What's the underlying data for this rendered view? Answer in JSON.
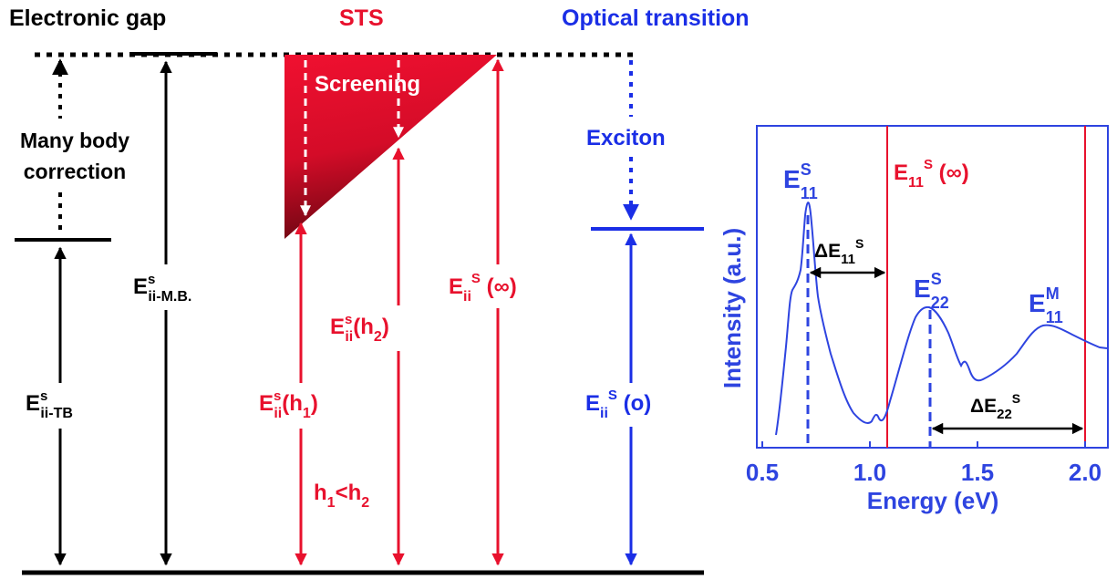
{
  "headers": {
    "electronic_gap": "Electronic gap",
    "sts": "STS",
    "optical_transition": "Optical transition"
  },
  "labels": {
    "many_body_line1": "Many body",
    "many_body_line2": "correction",
    "screening": "Screening",
    "exciton": "Exciton"
  },
  "energies": {
    "tb": {
      "base": "E",
      "sup": "s",
      "sub": "ii-TB"
    },
    "mb": {
      "base": "E",
      "sup": "s",
      "sub": "ii-M.B."
    },
    "h1": {
      "base": "E",
      "sup": "s",
      "sub": "ii",
      "tail": "(h",
      "tail_sub": "1",
      "tail_end": ")"
    },
    "h2": {
      "base": "E",
      "sup": "s",
      "sub": "ii",
      "tail": "(h",
      "tail_sub": "2",
      "tail_end": ")"
    },
    "inf": {
      "base": "E",
      "sub": "ii",
      "sup": "S",
      "tail": " (∞)"
    },
    "o": {
      "base": "E",
      "sub": "ii",
      "sup": "S",
      "tail": " (o)"
    },
    "h_compare": {
      "a": "h",
      "a_sub": "1",
      "op": "<h",
      "b_sub": "2"
    }
  },
  "inset": {
    "ylabel": "Intensity (a.u.)",
    "xlabel": "Energy (eV)",
    "xticks": [
      "0.5",
      "1.0",
      "1.5",
      "2.0"
    ],
    "peak_e11s": {
      "base": "E",
      "sup": "S",
      "sub": "11"
    },
    "peak_e22s": {
      "base": "E",
      "sup": "S",
      "sub": "22"
    },
    "peak_e11m": {
      "base": "E",
      "sup": "M",
      "sub": "11"
    },
    "e11s_inf": {
      "base": "E",
      "sub": "11",
      "sup": "S",
      "tail": " (∞)"
    },
    "delta_e11": {
      "base": "ΔE",
      "sub": "11",
      "sup": "S"
    },
    "delta_e22": {
      "base": "ΔE",
      "sub": "22",
      "sup": "S"
    }
  },
  "colors": {
    "black": "#000000",
    "red": "#e8112d",
    "red_dark": "#8b0a1e",
    "blue": "#1a2ee6",
    "inset_blue": "#2e44e0"
  }
}
